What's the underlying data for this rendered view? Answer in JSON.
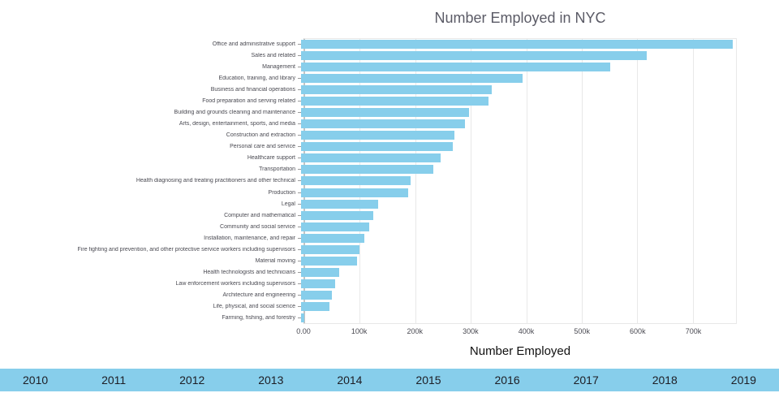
{
  "title": "Number Employed in NYC",
  "x_axis_title": "Number Employed",
  "chart_data": {
    "type": "bar",
    "orientation": "horizontal",
    "title": "Number Employed in NYC",
    "xlabel": "Number Employed",
    "ylabel": "",
    "xlim": [
      0,
      778000
    ],
    "grid": true,
    "bar_color": "#87CEEB",
    "x_ticks": [
      "0.00",
      "100k",
      "200k",
      "300k",
      "400k",
      "500k",
      "600k",
      "700k"
    ],
    "x_tick_values": [
      0,
      100000,
      200000,
      300000,
      400000,
      500000,
      600000,
      700000
    ],
    "categories": [
      "Office and administrative support",
      "Sales and related",
      "Management",
      "Education, training, and library",
      "Business and financial operations",
      "Food preparation and serving related",
      "Building and grounds cleaning and maintenance",
      "Arts, design, entertainment, sports, and media",
      "Construction and extraction",
      "Personal care and service",
      "Healthcare support",
      "Transportation",
      "Health diagnosing and treating practitioners and other technical",
      "Production",
      "Legal",
      "Computer and mathematical",
      "Community and social service",
      "Installation, maintenance, and repair",
      "Fire fighting and prevention, and other protective service workers including supervisors",
      "Material moving",
      "Health technologists and technicians",
      "Law enforcement workers including supervisors",
      "Architecture and engineering",
      "Life, physical, and social science",
      "Farming, fishing, and forestry"
    ],
    "values": [
      775000,
      620000,
      555000,
      398000,
      342000,
      336000,
      301000,
      295000,
      276000,
      272000,
      251000,
      237000,
      197000,
      193000,
      139000,
      130000,
      123000,
      113000,
      105000,
      101000,
      69000,
      61000,
      56000,
      51000,
      6000
    ]
  },
  "slider": {
    "color": "#87CEEB",
    "years": [
      "2010",
      "2011",
      "2012",
      "2013",
      "2014",
      "2015",
      "2016",
      "2017",
      "2018",
      "2019"
    ]
  }
}
